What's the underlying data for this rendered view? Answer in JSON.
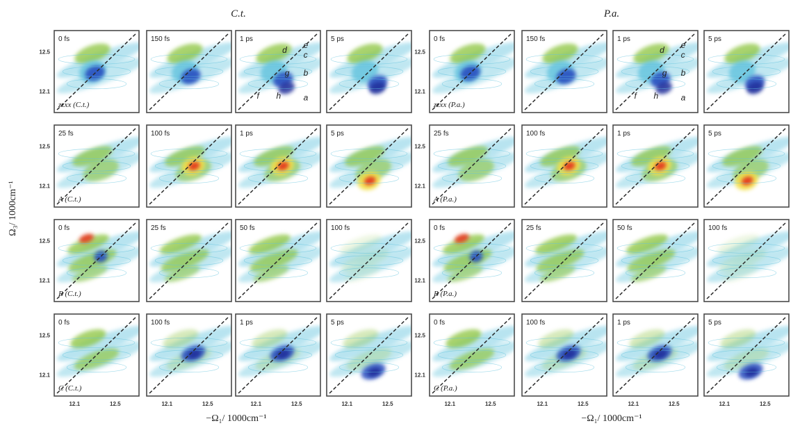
{
  "figure": {
    "groups": [
      {
        "title": "C.t.",
        "rows": [
          {
            "label": "zzxx (C.t.)",
            "times": [
              "0 fs",
              "150 fs",
              "1 ps",
              "5 ps"
            ]
          },
          {
            "label": "A (C.t.)",
            "times": [
              "25 fs",
              "100 fs",
              "1 ps",
              "5 ps"
            ]
          },
          {
            "label": "B (C.t.)",
            "times": [
              "0 fs",
              "25 fs",
              "50 fs",
              "100 fs"
            ]
          },
          {
            "label": "C (C.t.)",
            "times": [
              "0 fs",
              "100 fs",
              "1 ps",
              "5 ps"
            ]
          }
        ]
      },
      {
        "title": "P.a.",
        "rows": [
          {
            "label": "zzxx (P.a.)",
            "times": [
              "0 fs",
              "150 fs",
              "1 ps",
              "5 ps"
            ]
          },
          {
            "label": "A (P.a.)",
            "times": [
              "25 fs",
              "100 fs",
              "1 ps",
              "5 ps"
            ]
          },
          {
            "label": "B (P.a.)",
            "times": [
              "0 fs",
              "25 fs",
              "50 fs",
              "100 fs"
            ]
          },
          {
            "label": "C (P.a.)",
            "times": [
              "0 fs",
              "100 fs",
              "1 ps",
              "5 ps"
            ]
          }
        ]
      }
    ],
    "peak_letters": [
      "e",
      "d",
      "c",
      "g",
      "b",
      "f",
      "h",
      "a"
    ],
    "y_axis_title": "Ω₃/ 1000cm⁻¹",
    "x_axis_title": "−Ω₁/ 1000cm⁻¹",
    "y_ticks": [
      "12.5",
      "12.1"
    ],
    "x_ticks": [
      "12.1",
      "12.5"
    ],
    "colors": {
      "green": "#8cc43c",
      "yellow": "#f2e04a",
      "red": "#e43a1c",
      "cyan": "#62c3dd",
      "blue": "#2a4fc0",
      "darkblue": "#1d2f9a",
      "diagonal": "#2a2a2a"
    }
  }
}
